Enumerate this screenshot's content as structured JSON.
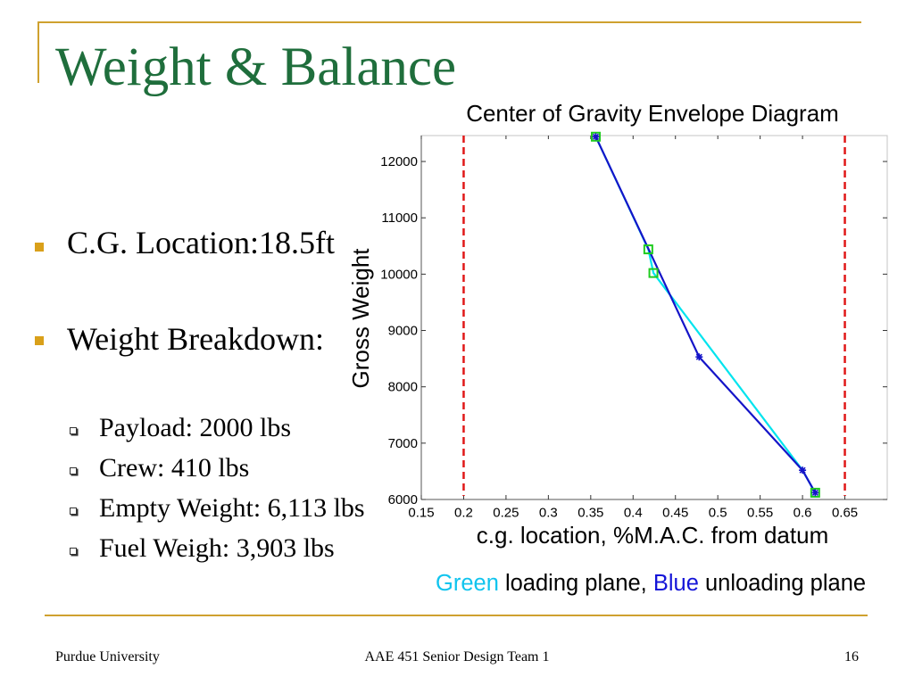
{
  "slide": {
    "title": "Weight & Balance",
    "bullets": [
      "C.G. Location:18.5ft",
      "Weight Breakdown:"
    ],
    "sub_bullets": [
      "Payload: 2000 lbs",
      "Crew: 410 lbs",
      "Empty Weight: 6,113 lbs",
      "Fuel Weigh: 3,903 lbs"
    ],
    "caption": {
      "green": "Green",
      "middle": " loading plane, ",
      "blue": "Blue",
      "end": " unloading plane"
    },
    "footer": {
      "left": "Purdue University",
      "center": "AAE 451 Senior Design Team 1",
      "page_number": "16"
    }
  },
  "colors": {
    "title": "#1F6E3C",
    "accent_rule": "#CFA12F",
    "bullet": "#D9A01A",
    "caption_green_word": "#10C4EE",
    "caption_blue_word": "#1414D8"
  },
  "chart_data": {
    "type": "line",
    "title": "Center of Gravity Envelope Diagram",
    "xlabel": "c.g. location, %M.A.C. from datum",
    "ylabel": "Gross Weight",
    "xlim": [
      0.15,
      0.7
    ],
    "ylim": [
      6000,
      12460
    ],
    "xticks": [
      0.15,
      0.2,
      0.25,
      0.3,
      0.35,
      0.4,
      0.45,
      0.5,
      0.55,
      0.6,
      0.65
    ],
    "yticks": [
      6000,
      7000,
      8000,
      9000,
      10000,
      11000,
      12000
    ],
    "grid": false,
    "legend": "none",
    "reference_lines": [
      {
        "axis": "x",
        "value": 0.2,
        "style": "dashed",
        "color": "#E01818"
      },
      {
        "axis": "x",
        "value": 0.65,
        "style": "dashed",
        "color": "#E01818"
      }
    ],
    "series": [
      {
        "line_color": "#00E4EE",
        "marker": "square",
        "marker_color": "#1FCC1F",
        "x": [
          0.356,
          0.418,
          0.424,
          0.6,
          0.615
        ],
        "y": [
          12440,
          10440,
          10020,
          6520,
          6120
        ],
        "marker_on": [
          true,
          true,
          true,
          false,
          true
        ]
      },
      {
        "line_color": "#1414C8",
        "marker": "star",
        "marker_color": "#1414C8",
        "x": [
          0.356,
          0.478,
          0.6,
          0.615
        ],
        "y": [
          12440,
          8530,
          6520,
          6120
        ]
      }
    ]
  }
}
